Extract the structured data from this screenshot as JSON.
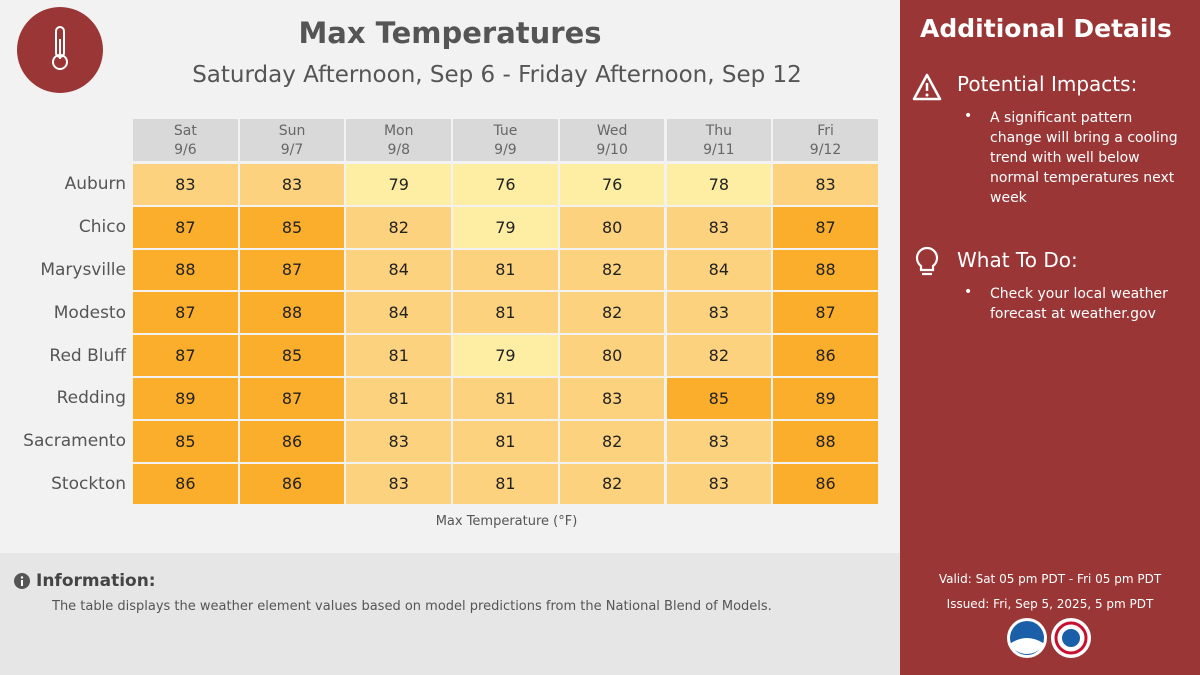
{
  "header": {
    "title": "Max Temperatures",
    "subtitle": "Saturday Afternoon, Sep 6 - Friday Afternoon, Sep 12"
  },
  "table": {
    "columns": [
      {
        "day": "Sat",
        "date": "9/6"
      },
      {
        "day": "Sun",
        "date": "9/7"
      },
      {
        "day": "Mon",
        "date": "9/8"
      },
      {
        "day": "Tue",
        "date": "9/9"
      },
      {
        "day": "Wed",
        "date": "9/10"
      },
      {
        "day": "Thu",
        "date": "9/11"
      },
      {
        "day": "Fri",
        "date": "9/12"
      }
    ],
    "rows": [
      {
        "city": "Auburn",
        "values": [
          83,
          83,
          79,
          76,
          76,
          78,
          83
        ]
      },
      {
        "city": "Chico",
        "values": [
          87,
          85,
          82,
          79,
          80,
          83,
          87
        ]
      },
      {
        "city": "Marysville",
        "values": [
          88,
          87,
          84,
          81,
          82,
          84,
          88
        ]
      },
      {
        "city": "Modesto",
        "values": [
          87,
          88,
          84,
          81,
          82,
          83,
          87
        ]
      },
      {
        "city": "Red Bluff",
        "values": [
          87,
          85,
          81,
          79,
          80,
          82,
          86
        ]
      },
      {
        "city": "Redding",
        "values": [
          89,
          87,
          81,
          81,
          83,
          85,
          89
        ]
      },
      {
        "city": "Sacramento",
        "values": [
          85,
          86,
          83,
          81,
          82,
          83,
          88
        ]
      },
      {
        "city": "Stockton",
        "values": [
          86,
          86,
          83,
          81,
          82,
          83,
          86
        ]
      }
    ],
    "caption": "Max Temperature (°F)"
  },
  "info": {
    "heading": "Information:",
    "text": "The table displays the weather element values based on model predictions from the National Blend of Models."
  },
  "details": {
    "title": "Additional Details",
    "sections": [
      {
        "heading": "Potential Impacts:",
        "items": [
          "A significant pattern change will bring a cooling trend with well below normal temperatures next week"
        ]
      },
      {
        "heading": "What To Do:",
        "items": [
          "Check your local weather forecast at weather.gov"
        ]
      }
    ],
    "valid": "Valid: Sat 05 pm PDT - Fri 05 pm PDT",
    "issued": "Issued: Fri, Sep 5, 2025, 5 pm PDT"
  }
}
